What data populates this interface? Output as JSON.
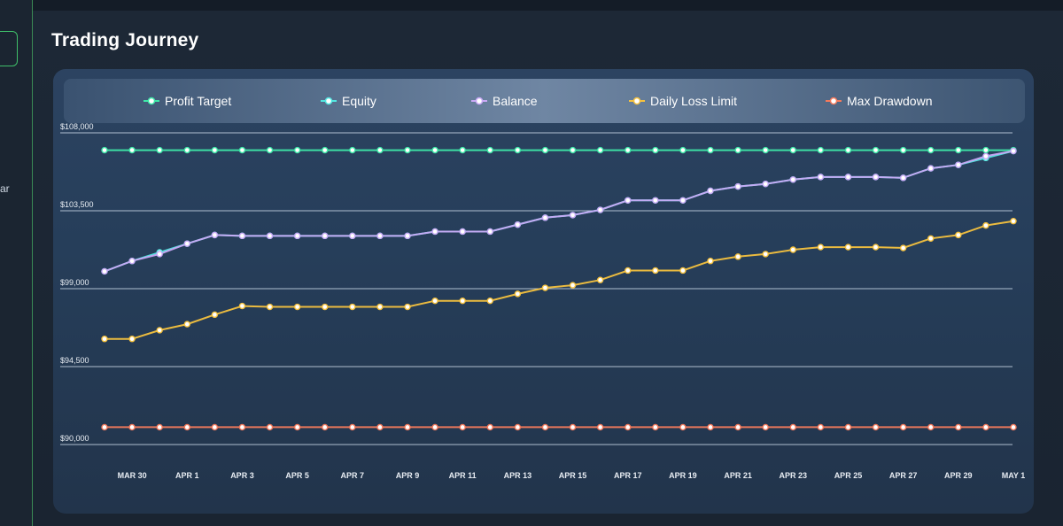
{
  "page": {
    "title": "Trading Journey"
  },
  "sidebar": {
    "partial_text": "ar"
  },
  "legend": [
    {
      "label": "Profit Target",
      "color": "#3ee8a8"
    },
    {
      "label": "Equity",
      "color": "#52e6e0"
    },
    {
      "label": "Balance",
      "color": "#c9a8f5"
    },
    {
      "label": "Daily Loss Limit",
      "color": "#f6c23e"
    },
    {
      "label": "Max Drawdown",
      "color": "#f47a5c"
    }
  ],
  "chart_data": {
    "type": "line",
    "title": "Trading Journey",
    "xlabel": "",
    "ylabel": "",
    "ylim": [
      90000,
      108000
    ],
    "y_ticks": [
      "$90,000",
      "$94,500",
      "$99,000",
      "$103,500",
      "$108,000"
    ],
    "y_tick_values": [
      90000,
      94500,
      99000,
      103500,
      108000
    ],
    "x": [
      "Mar 29",
      "Mar 30",
      "Mar 31",
      "Apr 1",
      "Apr 2",
      "Apr 3",
      "Apr 4",
      "Apr 5",
      "Apr 6",
      "Apr 7",
      "Apr 8",
      "Apr 9",
      "Apr 10",
      "Apr 11",
      "Apr 12",
      "Apr 13",
      "Apr 14",
      "Apr 15",
      "Apr 16",
      "Apr 17",
      "Apr 18",
      "Apr 19",
      "Apr 20",
      "Apr 21",
      "Apr 22",
      "Apr 23",
      "Apr 24",
      "Apr 25",
      "Apr 26",
      "Apr 27",
      "Apr 28",
      "Apr 29",
      "Apr 30",
      "May 1"
    ],
    "x_tick_labels": [
      "MAR 30",
      "APR 1",
      "APR 3",
      "APR 5",
      "APR 7",
      "APR 9",
      "APR 11",
      "APR 13",
      "APR 15",
      "APR 17",
      "APR 19",
      "APR 21",
      "APR 23",
      "APR 25",
      "APR 27",
      "APR 29",
      "MAY 1"
    ],
    "grid": true,
    "legend_position": "top",
    "series": [
      {
        "name": "Profit Target",
        "color": "#3ee8a8",
        "values": [
          107000,
          107000,
          107000,
          107000,
          107000,
          107000,
          107000,
          107000,
          107000,
          107000,
          107000,
          107000,
          107000,
          107000,
          107000,
          107000,
          107000,
          107000,
          107000,
          107000,
          107000,
          107000,
          107000,
          107000,
          107000,
          107000,
          107000,
          107000,
          107000,
          107000,
          107000,
          107000,
          107000,
          107000
        ]
      },
      {
        "name": "Equity",
        "color": "#52e6e0",
        "values": [
          100000,
          100600,
          101100,
          101600,
          102100,
          102050,
          102050,
          102050,
          102050,
          102050,
          102050,
          102050,
          102300,
          102300,
          102300,
          102700,
          103100,
          103250,
          103550,
          104100,
          104100,
          104100,
          104650,
          104900,
          105050,
          105300,
          105450,
          105450,
          105450,
          105400,
          105950,
          106150,
          106550,
          106950
        ]
      },
      {
        "name": "Balance",
        "color": "#c9a8f5",
        "values": [
          100000,
          100600,
          101000,
          101600,
          102100,
          102050,
          102050,
          102050,
          102050,
          102050,
          102050,
          102050,
          102300,
          102300,
          102300,
          102700,
          103100,
          103250,
          103550,
          104100,
          104100,
          104100,
          104650,
          104900,
          105050,
          105300,
          105450,
          105450,
          105450,
          105400,
          105950,
          106150,
          106650,
          106950
        ]
      },
      {
        "name": "Daily Loss Limit",
        "color": "#f6c23e",
        "values": [
          96100,
          96100,
          96600,
          96950,
          97500,
          98000,
          97950,
          97950,
          97950,
          97950,
          97950,
          97950,
          98300,
          98300,
          98300,
          98700,
          99050,
          99200,
          99500,
          100050,
          100050,
          100050,
          100600,
          100850,
          101000,
          101250,
          101400,
          101400,
          101400,
          101350,
          101900,
          102100,
          102650,
          102900
        ]
      },
      {
        "name": "Max Drawdown",
        "color": "#f47a5c",
        "values": [
          91000,
          91000,
          91000,
          91000,
          91000,
          91000,
          91000,
          91000,
          91000,
          91000,
          91000,
          91000,
          91000,
          91000,
          91000,
          91000,
          91000,
          91000,
          91000,
          91000,
          91000,
          91000,
          91000,
          91000,
          91000,
          91000,
          91000,
          91000,
          91000,
          91000,
          91000,
          91000,
          91000,
          91000
        ]
      }
    ]
  }
}
